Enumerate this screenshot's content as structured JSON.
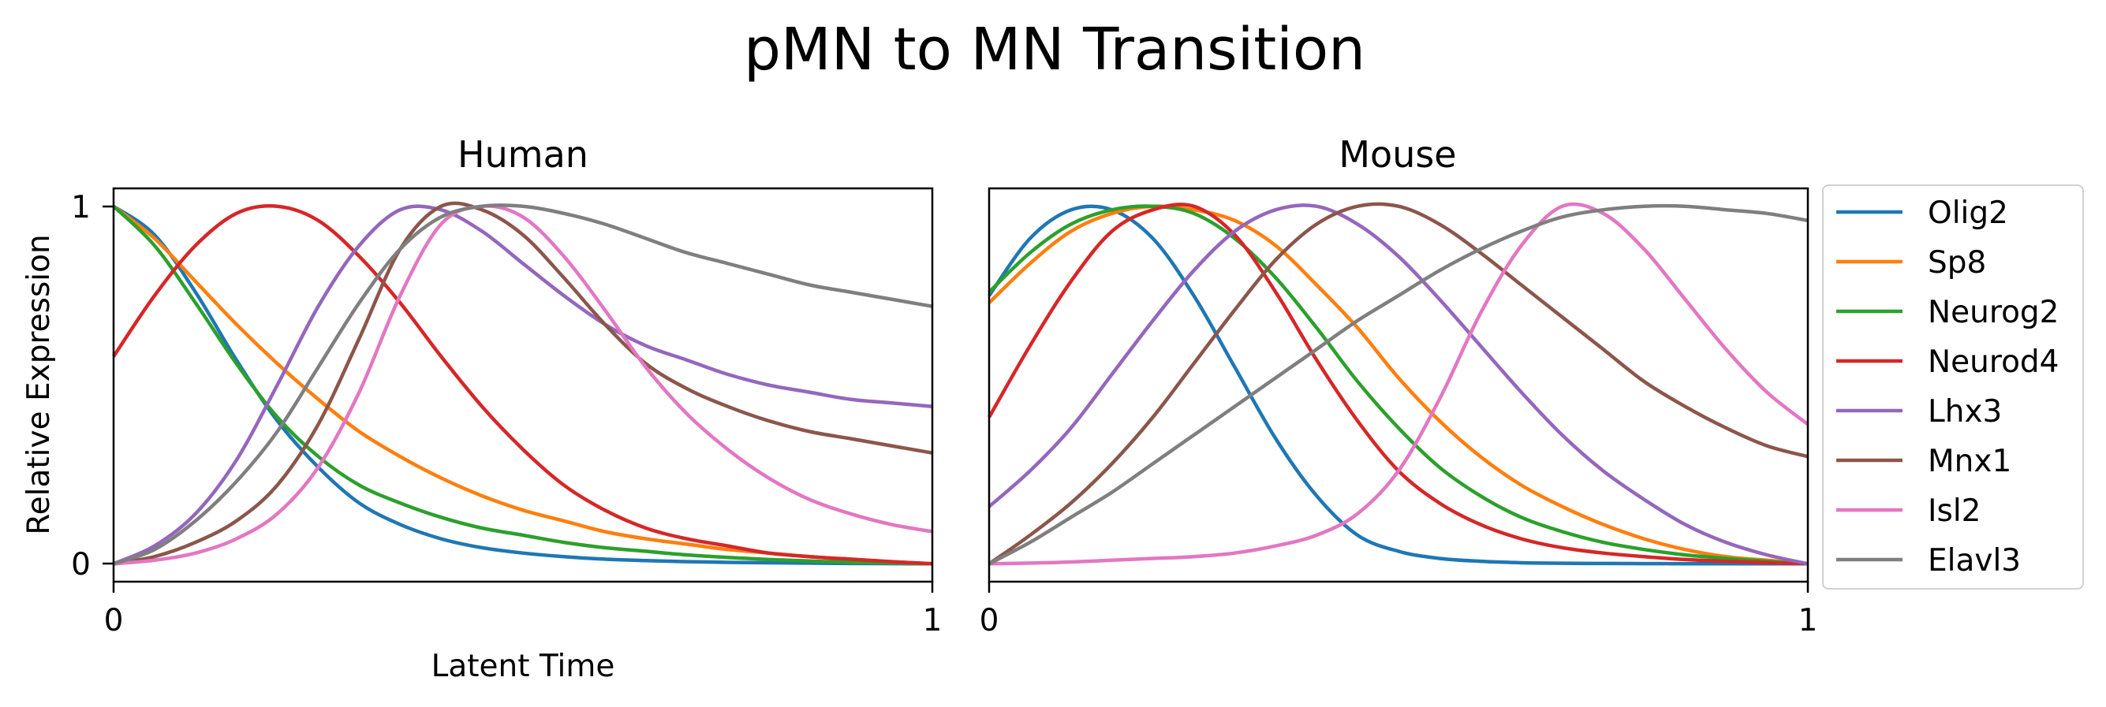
{
  "figure": {
    "title": "pMN to MN Transition"
  },
  "chart_data": [
    {
      "type": "line",
      "title": "Human",
      "xlabel": "Latent Time",
      "ylabel": "Relative Expression",
      "xlim": [
        0,
        1
      ],
      "ylim": [
        -0.05,
        1.05
      ],
      "xticks": [
        "0",
        "1"
      ],
      "yticks": [
        "0",
        "1"
      ],
      "grid": false,
      "x": [
        0,
        0.05,
        0.1,
        0.15,
        0.2,
        0.25,
        0.3,
        0.35,
        0.4,
        0.45,
        0.5,
        0.55,
        0.6,
        0.65,
        0.7,
        0.75,
        0.8,
        0.85,
        0.9,
        0.95,
        1
      ],
      "series": [
        {
          "name": "Olig2",
          "color": "#1f77b4",
          "values": [
            1.0,
            0.92,
            0.76,
            0.57,
            0.4,
            0.27,
            0.17,
            0.11,
            0.07,
            0.045,
            0.03,
            0.02,
            0.013,
            0.009,
            0.006,
            0.004,
            0.003,
            0.002,
            0.001,
            0.0005,
            0.0
          ]
        },
        {
          "name": "Sp8",
          "color": "#ff7f0e",
          "values": [
            1.0,
            0.91,
            0.79,
            0.67,
            0.56,
            0.46,
            0.37,
            0.3,
            0.24,
            0.19,
            0.15,
            0.12,
            0.09,
            0.07,
            0.055,
            0.04,
            0.03,
            0.02,
            0.012,
            0.006,
            0.0
          ]
        },
        {
          "name": "Neurog2",
          "color": "#2ca02c",
          "values": [
            1.0,
            0.89,
            0.73,
            0.56,
            0.41,
            0.3,
            0.22,
            0.17,
            0.13,
            0.1,
            0.08,
            0.06,
            0.045,
            0.035,
            0.025,
            0.018,
            0.012,
            0.008,
            0.004,
            0.002,
            0.0
          ]
        },
        {
          "name": "Neurod4",
          "color": "#d62728",
          "values": [
            0.58,
            0.75,
            0.89,
            0.98,
            1.0,
            0.96,
            0.86,
            0.73,
            0.58,
            0.44,
            0.32,
            0.22,
            0.15,
            0.1,
            0.07,
            0.05,
            0.03,
            0.02,
            0.013,
            0.006,
            0.0
          ]
        },
        {
          "name": "Lhx3",
          "color": "#9467bd",
          "values": [
            0.0,
            0.05,
            0.14,
            0.29,
            0.5,
            0.72,
            0.89,
            0.99,
            0.99,
            0.93,
            0.84,
            0.75,
            0.67,
            0.61,
            0.57,
            0.53,
            0.5,
            0.48,
            0.46,
            0.45,
            0.44
          ]
        },
        {
          "name": "Mnx1",
          "color": "#8c564b",
          "values": [
            0.0,
            0.02,
            0.06,
            0.12,
            0.22,
            0.39,
            0.63,
            0.88,
            1.0,
            0.99,
            0.92,
            0.8,
            0.67,
            0.56,
            0.49,
            0.44,
            0.4,
            0.37,
            0.35,
            0.33,
            0.31
          ]
        },
        {
          "name": "Isl2",
          "color": "#e377c2",
          "values": [
            0.0,
            0.01,
            0.03,
            0.07,
            0.14,
            0.27,
            0.48,
            0.75,
            0.95,
            1.0,
            0.97,
            0.86,
            0.71,
            0.55,
            0.42,
            0.32,
            0.24,
            0.18,
            0.14,
            0.11,
            0.09
          ]
        },
        {
          "name": "Elavl3",
          "color": "#7f7f7f",
          "values": [
            0.0,
            0.04,
            0.12,
            0.23,
            0.37,
            0.55,
            0.73,
            0.88,
            0.97,
            1.0,
            1.0,
            0.98,
            0.95,
            0.91,
            0.87,
            0.84,
            0.81,
            0.78,
            0.76,
            0.74,
            0.72
          ]
        }
      ]
    },
    {
      "type": "line",
      "title": "Mouse",
      "xlim": [
        0,
        1
      ],
      "ylim": [
        -0.05,
        1.05
      ],
      "xticks": [
        "0",
        "1"
      ],
      "grid": false,
      "x": [
        0,
        0.05,
        0.1,
        0.15,
        0.2,
        0.25,
        0.3,
        0.35,
        0.4,
        0.45,
        0.5,
        0.55,
        0.6,
        0.65,
        0.7,
        0.75,
        0.8,
        0.85,
        0.9,
        0.95,
        1
      ],
      "series": [
        {
          "name": "Olig2",
          "color": "#1f77b4",
          "values": [
            0.75,
            0.91,
            0.99,
            0.99,
            0.91,
            0.75,
            0.55,
            0.35,
            0.19,
            0.08,
            0.035,
            0.015,
            0.007,
            0.003,
            0.0015,
            0.001,
            0.0005,
            0.0003,
            0.0002,
            0.0001,
            0.0
          ]
        },
        {
          "name": "Sp8",
          "color": "#ff7f0e",
          "values": [
            0.73,
            0.84,
            0.93,
            0.98,
            1.0,
            0.99,
            0.96,
            0.89,
            0.78,
            0.66,
            0.52,
            0.4,
            0.3,
            0.22,
            0.16,
            0.11,
            0.07,
            0.04,
            0.02,
            0.01,
            0.0
          ]
        },
        {
          "name": "Neurog2",
          "color": "#2ca02c",
          "values": [
            0.76,
            0.87,
            0.95,
            0.99,
            1.0,
            0.98,
            0.91,
            0.8,
            0.66,
            0.51,
            0.38,
            0.27,
            0.19,
            0.13,
            0.09,
            0.06,
            0.04,
            0.025,
            0.015,
            0.007,
            0.0
          ]
        },
        {
          "name": "Neurod4",
          "color": "#d62728",
          "values": [
            0.41,
            0.61,
            0.79,
            0.93,
            0.99,
            1.0,
            0.92,
            0.76,
            0.57,
            0.4,
            0.26,
            0.17,
            0.11,
            0.07,
            0.045,
            0.03,
            0.02,
            0.012,
            0.007,
            0.003,
            0.0
          ]
        },
        {
          "name": "Lhx3",
          "color": "#9467bd",
          "values": [
            0.16,
            0.26,
            0.38,
            0.53,
            0.68,
            0.82,
            0.93,
            0.99,
            1.0,
            0.95,
            0.86,
            0.74,
            0.61,
            0.48,
            0.36,
            0.26,
            0.18,
            0.11,
            0.06,
            0.025,
            0.0
          ]
        },
        {
          "name": "Mnx1",
          "color": "#8c564b",
          "values": [
            0.0,
            0.08,
            0.17,
            0.28,
            0.41,
            0.56,
            0.71,
            0.85,
            0.95,
            1.0,
            1.0,
            0.95,
            0.87,
            0.78,
            0.69,
            0.6,
            0.51,
            0.44,
            0.38,
            0.33,
            0.3
          ]
        },
        {
          "name": "Isl2",
          "color": "#e377c2",
          "values": [
            0.0,
            0.002,
            0.005,
            0.01,
            0.015,
            0.02,
            0.03,
            0.05,
            0.08,
            0.14,
            0.26,
            0.46,
            0.7,
            0.89,
            1.0,
            0.98,
            0.88,
            0.74,
            0.6,
            0.48,
            0.39
          ]
        },
        {
          "name": "Elavl3",
          "color": "#7f7f7f",
          "values": [
            0.0,
            0.06,
            0.13,
            0.2,
            0.28,
            0.36,
            0.44,
            0.52,
            0.6,
            0.68,
            0.75,
            0.82,
            0.88,
            0.93,
            0.97,
            0.99,
            1.0,
            1.0,
            0.99,
            0.98,
            0.96
          ]
        }
      ]
    }
  ],
  "legend": {
    "placement": "right",
    "entries": [
      "Olig2",
      "Sp8",
      "Neurog2",
      "Neurod4",
      "Lhx3",
      "Mnx1",
      "Isl2",
      "Elavl3"
    ]
  }
}
